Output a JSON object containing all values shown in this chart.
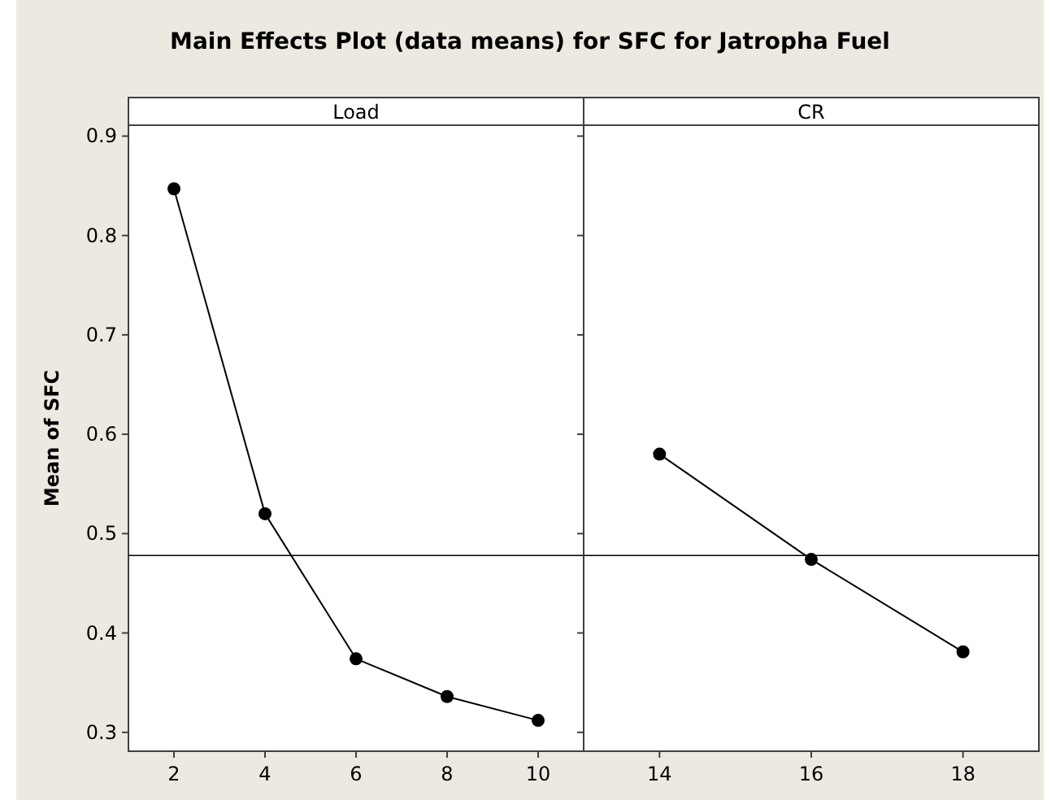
{
  "chart_data": [
    {
      "type": "line",
      "title": "Main Effects Plot (data means) for SFC for Jatropha Fuel",
      "subtitle": "Load",
      "ylabel": "Mean of SFC",
      "x": [
        2,
        4,
        6,
        8,
        10
      ],
      "series": [
        {
          "color": "#000000",
          "values": [
            0.847,
            0.52,
            0.374,
            0.336,
            0.312
          ]
        }
      ],
      "xlim": [
        1,
        11
      ],
      "xticks": [
        2,
        4,
        6,
        8,
        10
      ],
      "ylim": [
        0.281,
        0.911
      ],
      "yticks": [
        0.3,
        0.4,
        0.5,
        0.6,
        0.7,
        0.8,
        0.9
      ],
      "marker": "circle",
      "grid": false,
      "ref_lines": [
        {
          "axis": "y",
          "value": 0.478,
          "color": "#000000"
        }
      ]
    },
    {
      "type": "line",
      "subtitle": "CR",
      "x": [
        14,
        16,
        18
      ],
      "series": [
        {
          "color": "#000000",
          "values": [
            0.58,
            0.474,
            0.381
          ]
        }
      ],
      "xlim": [
        13,
        19
      ],
      "xticks": [
        14,
        16,
        18
      ],
      "ylim": [
        0.281,
        0.911
      ],
      "yticks": [
        0.3,
        0.4,
        0.5,
        0.6,
        0.7,
        0.8,
        0.9
      ],
      "tick_labels": "x",
      "marker": "circle",
      "grid": false,
      "ref_lines": [
        {
          "axis": "y",
          "value": 0.478,
          "color": "#000000"
        }
      ]
    }
  ]
}
